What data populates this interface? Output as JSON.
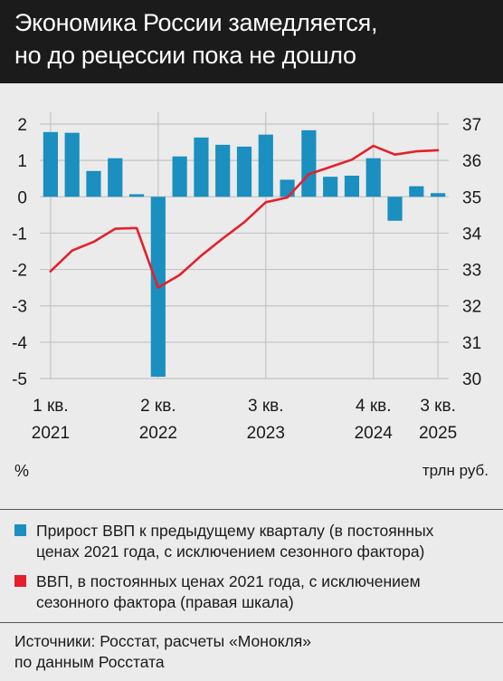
{
  "title": {
    "line1": "Экономика России замедляется,",
    "line2": "но до рецессии пока не дошло"
  },
  "chart_data": {
    "type": "bar+line",
    "left_axis": {
      "unit": "%",
      "ticks": [
        "2",
        "1",
        "0",
        "-1",
        "-2",
        "-3",
        "-4",
        "-5"
      ],
      "range": [
        -5,
        2
      ]
    },
    "right_axis": {
      "unit": "трлн руб.",
      "ticks": [
        "37",
        "36",
        "35",
        "34",
        "33",
        "32",
        "31",
        "30"
      ],
      "range": [
        30,
        37
      ]
    },
    "x_ticks": [
      {
        "line1": "1 кв.",
        "line2": "2021",
        "index": 0
      },
      {
        "line1": "2 кв.",
        "line2": "2022",
        "index": 5
      },
      {
        "line1": "3 кв.",
        "line2": "2023",
        "index": 10
      },
      {
        "line1": "4 кв.",
        "line2": "2024",
        "index": 15
      },
      {
        "line1": "3 кв.",
        "line2": "2025",
        "index": 18
      }
    ],
    "quarters": [
      "1 кв. 2021",
      "2 кв. 2021",
      "3 кв. 2021",
      "4 кв. 2021",
      "1 кв. 2022",
      "2 кв. 2022",
      "3 кв. 2022",
      "4 кв. 2022",
      "1 кв. 2023",
      "2 кв. 2023",
      "3 кв. 2023",
      "4 кв. 2023",
      "1 кв. 2024",
      "2 кв. 2024",
      "3 кв. 2024",
      "4 кв. 2024",
      "1 кв. 2025",
      "2 кв. 2025",
      "3 кв. 2025"
    ],
    "series": [
      {
        "name": "Прирост ВВП к предыдущему кварталу (в постоянных ценах 2021 года, с исключением сезонного фактора)",
        "type": "bar",
        "axis": "left",
        "color": "#1a8fc0",
        "values": [
          1.78,
          1.76,
          0.71,
          1.06,
          0.07,
          -4.95,
          1.11,
          1.63,
          1.43,
          1.38,
          1.71,
          0.47,
          1.83,
          0.55,
          0.58,
          1.06,
          -0.66,
          0.29,
          0.1
        ]
      },
      {
        "name": "ВВП, в постоянных ценах 2021 года, с исключением сезонного фактора (правая шкала)",
        "type": "line",
        "axis": "right",
        "color": "#e4202c",
        "values": [
          32.95,
          33.52,
          33.76,
          34.12,
          34.14,
          32.5,
          32.85,
          33.38,
          33.85,
          34.3,
          34.85,
          34.98,
          35.62,
          35.82,
          36.02,
          36.4,
          36.16,
          36.25,
          36.28
        ]
      }
    ]
  },
  "legend": {
    "items": [
      {
        "line1": "Прирост ВВП к предыдущему кварталу (в постоянных",
        "line2": "ценах 2021 года, с исключением сезонного фактора)",
        "color": "#1a8fc0"
      },
      {
        "line1": "ВВП, в постоянных ценах 2021 года, с исключением",
        "line2": "сезонного фактора (правая шкала)",
        "color": "#e4202c"
      }
    ]
  },
  "sources": {
    "line1": "Источники: Росстат, расчеты «Монокля»",
    "line2": "по данным Росстата"
  }
}
